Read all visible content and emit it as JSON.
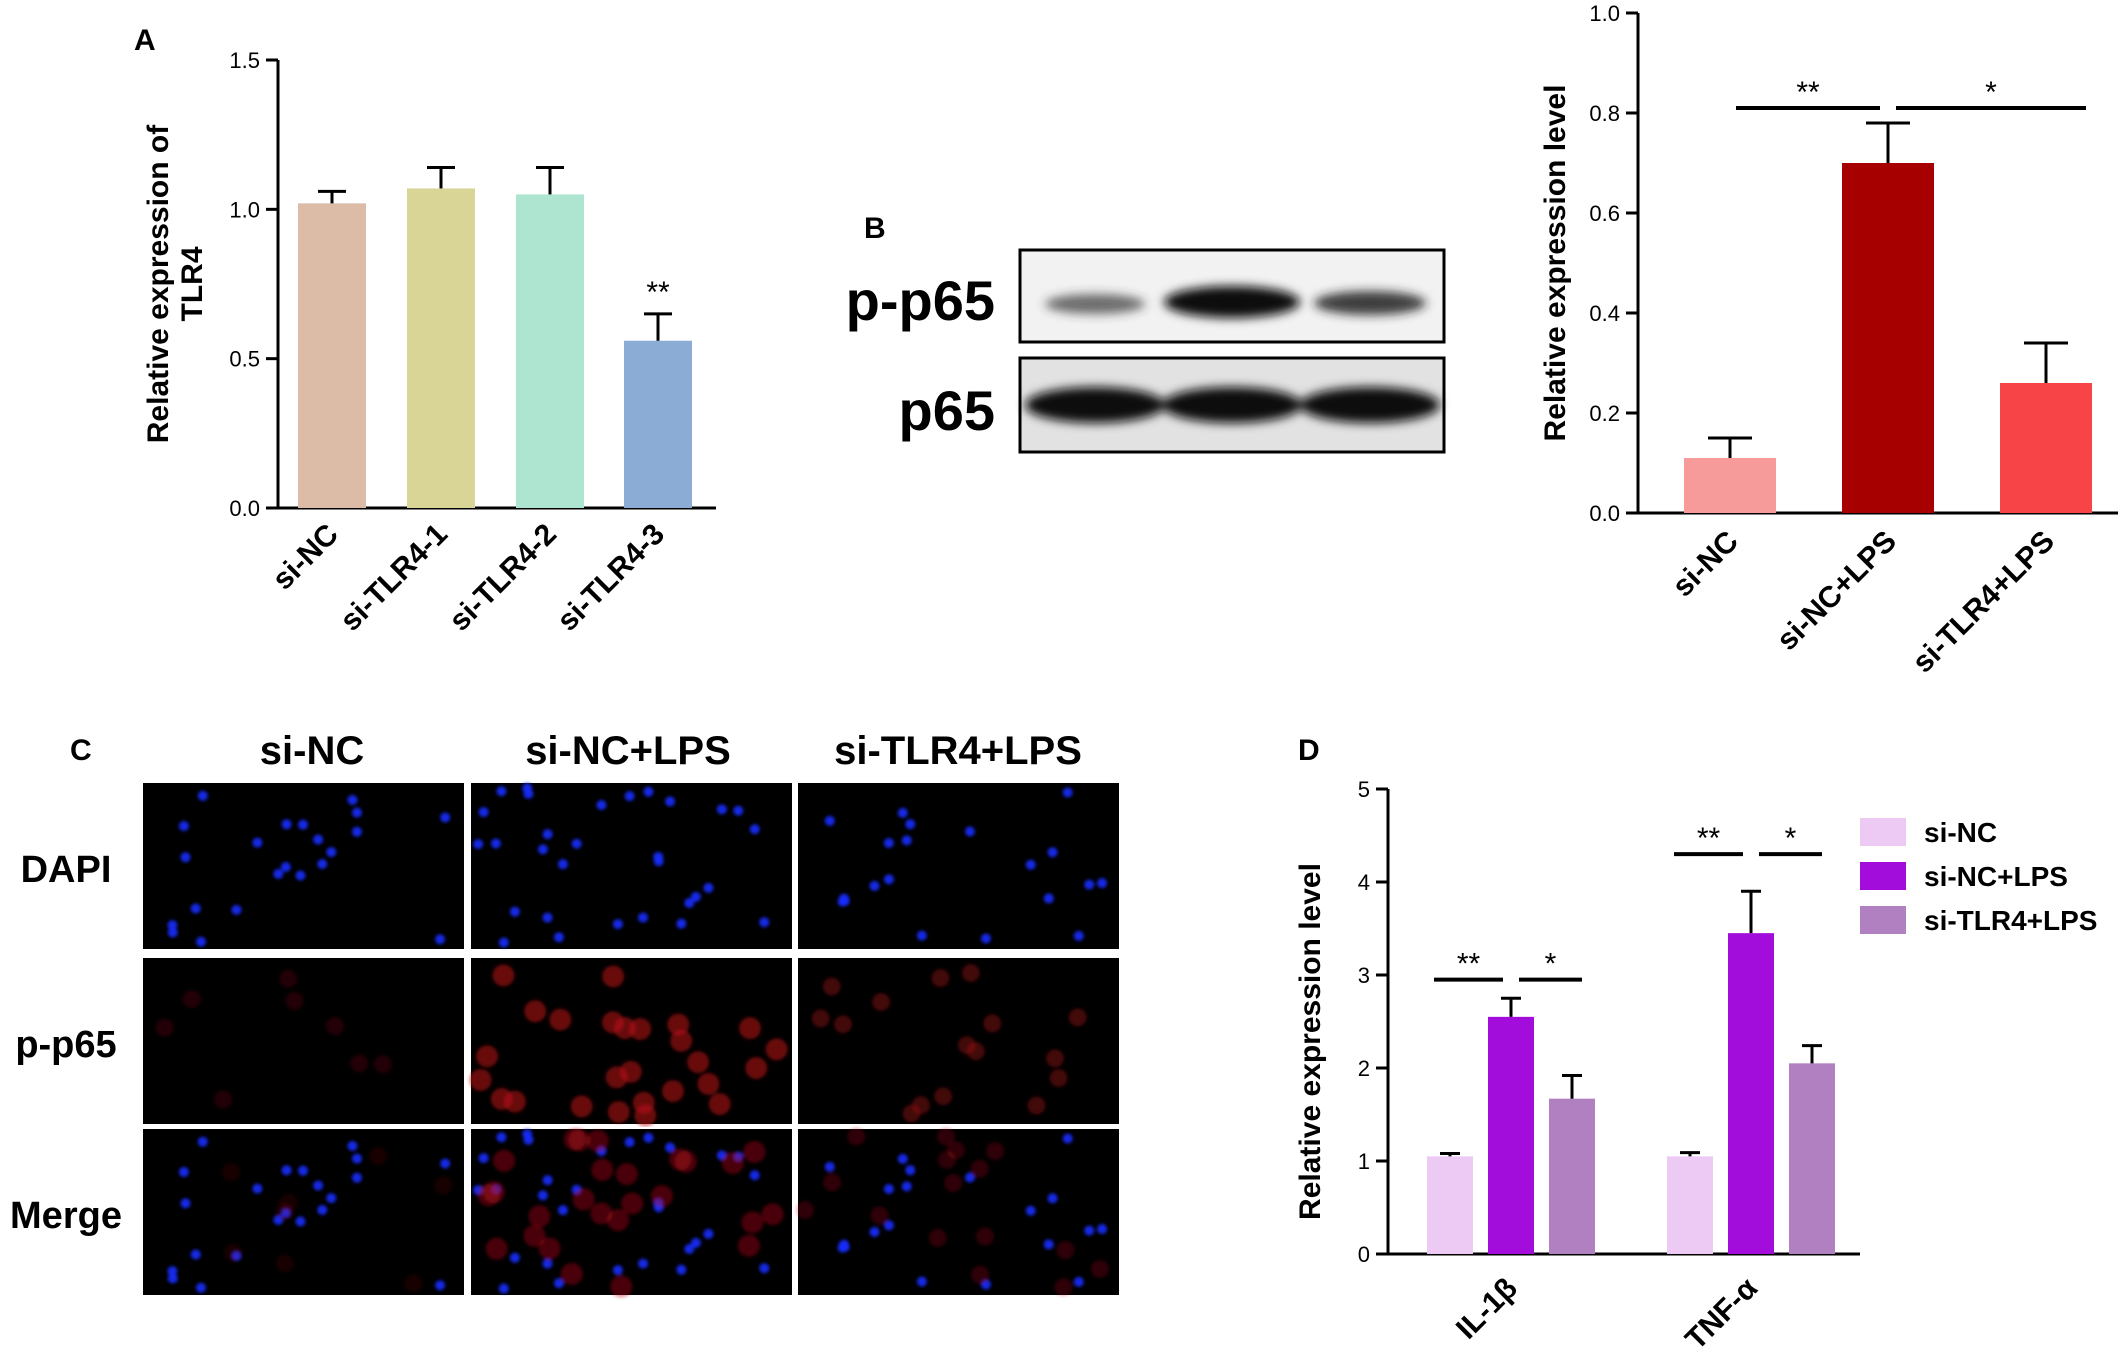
{
  "panels": {
    "A": "A",
    "B": "B",
    "C": "C",
    "D": "D"
  },
  "chart_data": [
    {
      "panel": "A",
      "type": "bar",
      "ylabel": "Relative expression of TLR4",
      "ylabel_lines": [
        "Relative expression of",
        "TLR4"
      ],
      "ylim": [
        0,
        1.5
      ],
      "yticks": [
        "0.0",
        "0.5",
        "1.0",
        "1.5"
      ],
      "categories": [
        "si-NC",
        "si-TLR4-1",
        "si-TLR4-2",
        "si-TLR4-3"
      ],
      "values": [
        1.02,
        1.07,
        1.05,
        0.56
      ],
      "errors": [
        0.04,
        0.07,
        0.09,
        0.09
      ],
      "colors": [
        "#dcbca6",
        "#d8d596",
        "#ade5d0",
        "#8bacd5"
      ],
      "significance": [
        {
          "label": "**",
          "bar": 3
        }
      ]
    },
    {
      "panel": "B",
      "type": "bar",
      "ylabel": "Relative expression level",
      "ylim": [
        0,
        1.0
      ],
      "yticks": [
        "0.0",
        "0.2",
        "0.4",
        "0.6",
        "0.8",
        "1.0"
      ],
      "categories": [
        "si-NC",
        "si-NC+LPS",
        "si-TLR4+LPS"
      ],
      "values": [
        0.11,
        0.7,
        0.26
      ],
      "errors": [
        0.04,
        0.08,
        0.08
      ],
      "colors": [
        "#f79a9a",
        "#a70000",
        "#f74446"
      ],
      "significance": [
        {
          "label": "**",
          "from": 0,
          "to": 1,
          "y": 0.81
        },
        {
          "label": "*",
          "from": 1,
          "to": 2,
          "y": 0.81
        }
      ]
    },
    {
      "panel": "D",
      "type": "bar",
      "ylabel": "Relative expression level",
      "ylim": [
        0,
        5
      ],
      "yticks": [
        "0",
        "1",
        "2",
        "3",
        "4",
        "5"
      ],
      "categories": [
        "IL-1β",
        "TNF-α"
      ],
      "series": [
        {
          "name": "si-NC",
          "values": [
            1.05,
            1.05
          ],
          "errors": [
            0.03,
            0.04
          ],
          "color": "#eccaf4"
        },
        {
          "name": "si-NC+LPS",
          "values": [
            2.55,
            3.45
          ],
          "errors": [
            0.2,
            0.45
          ],
          "color": "#a30ddb"
        },
        {
          "name": "si-TLR4+LPS",
          "values": [
            1.67,
            2.05
          ],
          "errors": [
            0.25,
            0.19
          ],
          "color": "#b080c0"
        }
      ],
      "significance": [
        {
          "label": "**",
          "category": 0,
          "from": 0,
          "to": 1,
          "y": 2.95
        },
        {
          "label": "*",
          "category": 0,
          "from": 1,
          "to": 2,
          "y": 2.95
        },
        {
          "label": "**",
          "category": 1,
          "from": 0,
          "to": 1,
          "y": 4.3
        },
        {
          "label": "*",
          "category": 1,
          "from": 1,
          "to": 2,
          "y": 4.3
        }
      ],
      "legend": "top-right"
    }
  ],
  "blot": {
    "rows": [
      "p-p65",
      "p65"
    ]
  },
  "microscopy": {
    "columns": [
      "si-NC",
      "si-NC+LPS",
      "si-TLR4+LPS"
    ],
    "rows": [
      "DAPI",
      "p-p65",
      "Merge"
    ]
  }
}
